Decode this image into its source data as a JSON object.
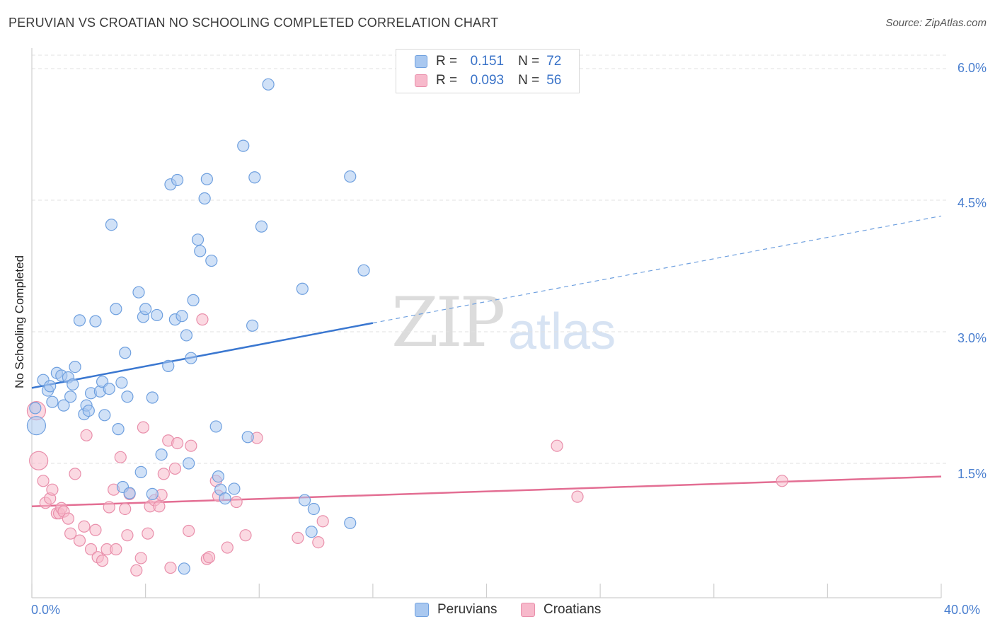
{
  "header": {
    "title": "PERUVIAN VS CROATIAN NO SCHOOLING COMPLETED CORRELATION CHART",
    "source": "Source: ZipAtlas.com"
  },
  "watermark": {
    "zip": "ZIP",
    "atlas": "atlas"
  },
  "legend": {
    "rows": [
      {
        "r_label": "R =",
        "r_value": "0.151",
        "n_label": "N =",
        "n_value": "72",
        "color": "#a9c8f0"
      },
      {
        "r_label": "R =",
        "r_value": "0.093",
        "n_label": "N =",
        "n_value": "56",
        "color": "#f7b9cb"
      }
    ]
  },
  "bottom_legend": {
    "items": [
      {
        "label": "Peruvians",
        "color": "#a9c8f0"
      },
      {
        "label": "Croatians",
        "color": "#f7b9cb"
      }
    ]
  },
  "chart_data": {
    "type": "scatter",
    "title": "PERUVIAN VS CROATIAN NO SCHOOLING COMPLETED CORRELATION CHART",
    "xlabel": "",
    "ylabel": "No Schooling Completed",
    "xlim": [
      0,
      40
    ],
    "ylim": [
      0,
      6.2
    ],
    "x_tick_labels": [
      "0.0%",
      "40.0%"
    ],
    "y_ticks": [
      1.5,
      3.0,
      4.5,
      6.0
    ],
    "y_tick_labels": [
      "1.5%",
      "3.0%",
      "4.5%",
      "6.0%"
    ],
    "grid": true,
    "legend_position": "top-center",
    "series": [
      {
        "name": "Peruvians",
        "color": "#6fa0df",
        "fill": "#a9c8f0",
        "trend": {
          "x": [
            0,
            15
          ],
          "y": [
            2.36,
            3.1
          ],
          "extended_to": [
            40,
            4.32
          ]
        },
        "points": [
          [
            0.2,
            1.93
          ],
          [
            0.5,
            2.45
          ],
          [
            0.7,
            2.33
          ],
          [
            0.8,
            2.38
          ],
          [
            0.9,
            2.2
          ],
          [
            1.1,
            2.53
          ],
          [
            1.3,
            2.5
          ],
          [
            1.4,
            2.16
          ],
          [
            1.6,
            2.48
          ],
          [
            1.7,
            2.26
          ],
          [
            1.8,
            2.4
          ],
          [
            1.9,
            2.6
          ],
          [
            2.1,
            3.13
          ],
          [
            2.3,
            2.06
          ],
          [
            2.4,
            2.16
          ],
          [
            2.5,
            2.1
          ],
          [
            2.6,
            2.3
          ],
          [
            2.8,
            3.12
          ],
          [
            3.0,
            2.32
          ],
          [
            3.1,
            2.43
          ],
          [
            3.2,
            2.05
          ],
          [
            3.4,
            2.35
          ],
          [
            3.5,
            4.22
          ],
          [
            3.8,
            1.89
          ],
          [
            3.7,
            3.26
          ],
          [
            4.0,
            1.23
          ],
          [
            4.1,
            2.76
          ],
          [
            4.2,
            2.26
          ],
          [
            4.3,
            1.16
          ],
          [
            4.7,
            3.45
          ],
          [
            4.8,
            1.4
          ],
          [
            4.9,
            3.17
          ],
          [
            5.0,
            3.26
          ],
          [
            5.3,
            2.25
          ],
          [
            5.3,
            1.15
          ],
          [
            5.5,
            3.19
          ],
          [
            5.7,
            1.6
          ],
          [
            6.0,
            2.61
          ],
          [
            6.1,
            4.68
          ],
          [
            6.3,
            3.14
          ],
          [
            6.4,
            4.73
          ],
          [
            6.6,
            3.18
          ],
          [
            6.7,
            0.3
          ],
          [
            6.8,
            2.96
          ],
          [
            6.9,
            1.5
          ],
          [
            7.0,
            2.7
          ],
          [
            7.1,
            3.36
          ],
          [
            7.3,
            4.05
          ],
          [
            7.4,
            3.92
          ],
          [
            7.6,
            4.52
          ],
          [
            7.7,
            4.74
          ],
          [
            7.9,
            3.81
          ],
          [
            8.1,
            1.92
          ],
          [
            8.2,
            1.35
          ],
          [
            8.3,
            1.2
          ],
          [
            8.5,
            1.1
          ],
          [
            8.9,
            1.21
          ],
          [
            9.3,
            5.12
          ],
          [
            9.5,
            1.8
          ],
          [
            9.7,
            3.07
          ],
          [
            9.8,
            4.76
          ],
          [
            10.1,
            4.2
          ],
          [
            10.4,
            5.82
          ],
          [
            11.9,
            3.49
          ],
          [
            12.0,
            1.08
          ],
          [
            12.3,
            0.72
          ],
          [
            12.4,
            0.98
          ],
          [
            14.0,
            4.77
          ],
          [
            14.0,
            0.82
          ],
          [
            14.6,
            3.7
          ],
          [
            0.15,
            2.13
          ],
          [
            3.95,
            2.42
          ]
        ]
      },
      {
        "name": "Croatians",
        "color": "#e98fab",
        "fill": "#f7b9cb",
        "trend": {
          "x": [
            0,
            40
          ],
          "y": [
            1.01,
            1.35
          ]
        },
        "points": [
          [
            0.2,
            2.1
          ],
          [
            0.3,
            1.53
          ],
          [
            0.5,
            1.3
          ],
          [
            0.6,
            1.05
          ],
          [
            0.8,
            1.1
          ],
          [
            0.9,
            1.2
          ],
          [
            1.1,
            0.93
          ],
          [
            1.2,
            0.93
          ],
          [
            1.3,
            0.99
          ],
          [
            1.4,
            0.95
          ],
          [
            1.6,
            0.87
          ],
          [
            1.7,
            0.7
          ],
          [
            1.9,
            1.38
          ],
          [
            2.1,
            0.62
          ],
          [
            2.3,
            0.78
          ],
          [
            2.4,
            1.82
          ],
          [
            2.6,
            0.52
          ],
          [
            2.8,
            0.74
          ],
          [
            2.9,
            0.43
          ],
          [
            3.1,
            0.39
          ],
          [
            3.3,
            0.52
          ],
          [
            3.4,
            1.0
          ],
          [
            3.6,
            1.2
          ],
          [
            3.7,
            0.52
          ],
          [
            3.9,
            1.57
          ],
          [
            4.1,
            0.98
          ],
          [
            4.2,
            0.68
          ],
          [
            4.3,
            1.15
          ],
          [
            4.6,
            0.28
          ],
          [
            4.8,
            0.42
          ],
          [
            4.9,
            1.91
          ],
          [
            5.1,
            0.7
          ],
          [
            5.2,
            1.01
          ],
          [
            5.4,
            1.08
          ],
          [
            5.6,
            1.01
          ],
          [
            5.7,
            1.14
          ],
          [
            5.8,
            1.38
          ],
          [
            6.0,
            1.76
          ],
          [
            6.1,
            0.31
          ],
          [
            6.3,
            1.44
          ],
          [
            6.4,
            1.73
          ],
          [
            6.9,
            0.73
          ],
          [
            7.0,
            1.7
          ],
          [
            7.5,
            3.14
          ],
          [
            7.7,
            0.41
          ],
          [
            7.8,
            0.43
          ],
          [
            8.1,
            1.3
          ],
          [
            8.2,
            1.13
          ],
          [
            8.6,
            0.54
          ],
          [
            9.0,
            1.06
          ],
          [
            9.4,
            0.68
          ],
          [
            9.9,
            1.79
          ],
          [
            11.7,
            0.65
          ],
          [
            12.6,
            0.6
          ],
          [
            12.8,
            0.84
          ],
          [
            23.1,
            1.7
          ]
        ],
        "extra_points": [
          [
            24.0,
            1.12
          ],
          [
            33.0,
            1.3
          ]
        ]
      }
    ]
  },
  "axes": {
    "x_left_label": "0.0%",
    "x_right_label": "40.0%",
    "y_labels": [
      "6.0%",
      "4.5%",
      "3.0%",
      "1.5%"
    ]
  }
}
